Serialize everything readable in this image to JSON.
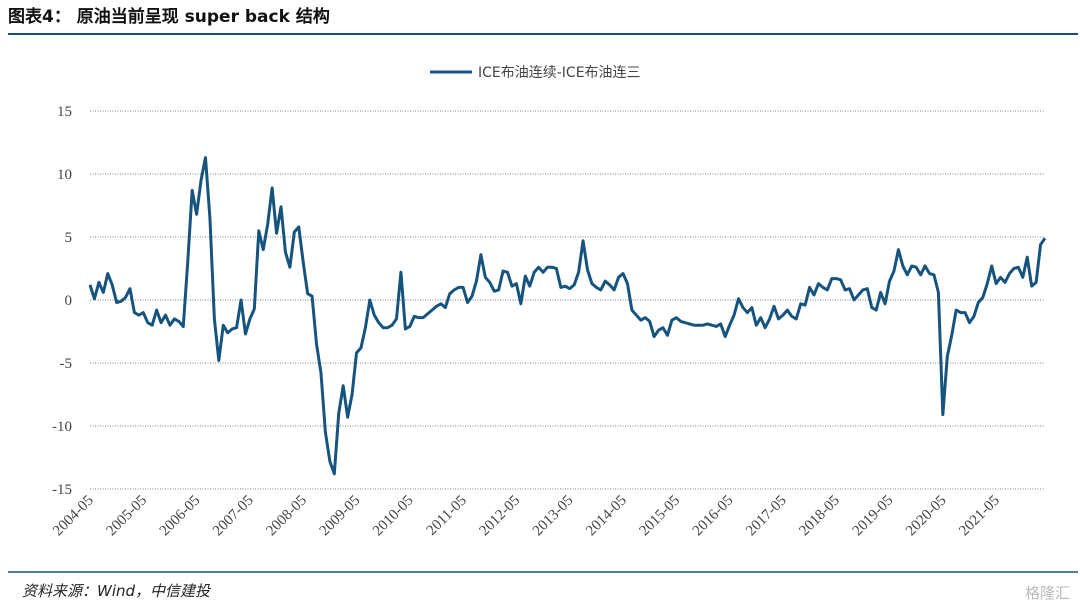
{
  "chart_data": {
    "type": "line",
    "title": "图表4： 原油当前呈现 super back 结构",
    "source": "资料来源：Wind，中信建投",
    "watermark": "格隆汇",
    "categories": [
      "2004-05",
      null,
      null,
      null,
      null,
      null,
      null,
      null,
      null,
      null,
      null,
      null,
      "2005-05",
      null,
      null,
      null,
      null,
      null,
      null,
      null,
      null,
      null,
      null,
      null,
      "2006-05",
      null,
      null,
      null,
      null,
      null,
      null,
      null,
      null,
      null,
      null,
      null,
      "2007-05",
      null,
      null,
      null,
      null,
      null,
      null,
      null,
      null,
      null,
      null,
      null,
      "2008-05",
      null,
      null,
      null,
      null,
      null,
      null,
      null,
      null,
      null,
      null,
      null,
      "2009-05",
      null,
      null,
      null,
      null,
      null,
      null,
      null,
      null,
      null,
      null,
      null,
      "2010-05",
      null,
      null,
      null,
      null,
      null,
      null,
      null,
      null,
      null,
      null,
      null,
      "2011-05",
      null,
      null,
      null,
      null,
      null,
      null,
      null,
      null,
      null,
      null,
      null,
      "2012-05",
      null,
      null,
      null,
      null,
      null,
      null,
      null,
      null,
      null,
      null,
      null,
      "2013-05",
      null,
      null,
      null,
      null,
      null,
      null,
      null,
      null,
      null,
      null,
      null,
      "2014-05",
      null,
      null,
      null,
      null,
      null,
      null,
      null,
      null,
      null,
      null,
      null,
      "2015-05",
      null,
      null,
      null,
      null,
      null,
      null,
      null,
      null,
      null,
      null,
      null,
      "2016-05",
      null,
      null,
      null,
      null,
      null,
      null,
      null,
      null,
      null,
      null,
      null,
      "2017-05",
      null,
      null,
      null,
      null,
      null,
      null,
      null,
      null,
      null,
      null,
      null,
      "2018-05",
      null,
      null,
      null,
      null,
      null,
      null,
      null,
      null,
      null,
      null,
      null,
      "2019-05",
      null,
      null,
      null,
      null,
      null,
      null,
      null,
      null,
      null,
      null,
      null,
      "2020-05",
      null,
      null,
      null,
      null,
      null,
      null,
      null,
      null,
      null,
      null,
      null,
      "2021-05",
      null,
      null,
      null,
      null,
      null,
      null,
      null,
      null,
      null,
      null,
      null
    ],
    "series": [
      {
        "name": "ICE布油连续-ICE布油连三",
        "color": "#16547f",
        "values": [
          1.2,
          0.1,
          1.4,
          0.6,
          2.1,
          1.2,
          -0.2,
          -0.1,
          0.2,
          0.9,
          -1.0,
          -1.2,
          -1.0,
          -1.8,
          -2.0,
          -0.8,
          -1.8,
          -1.2,
          -2.0,
          -1.5,
          -1.7,
          -2.1,
          3.0,
          8.7,
          6.8,
          9.5,
          11.3,
          6.5,
          -1.5,
          -4.8,
          -2.0,
          -2.6,
          -2.3,
          -2.2,
          0.0,
          -2.7,
          -1.5,
          -0.7,
          5.5,
          4.0,
          6.0,
          8.9,
          5.3,
          7.4,
          3.8,
          2.6,
          5.4,
          5.8,
          3.0,
          0.5,
          0.3,
          -3.5,
          -5.8,
          -10.5,
          -12.8,
          -13.8,
          -9.0,
          -6.8,
          -9.3,
          -7.5,
          -4.2,
          -3.8,
          -2.2,
          0.0,
          -1.2,
          -1.8,
          -2.2,
          -2.2,
          -2.0,
          -1.5,
          2.2,
          -2.3,
          -2.1,
          -1.3,
          -1.4,
          -1.4,
          -1.1,
          -0.8,
          -0.5,
          -0.3,
          -0.6,
          0.5,
          0.8,
          1.0,
          1.0,
          -0.2,
          0.3,
          1.5,
          3.6,
          1.8,
          1.4,
          0.7,
          0.8,
          2.3,
          2.2,
          1.1,
          1.3,
          -0.3,
          1.9,
          1.1,
          2.2,
          2.6,
          2.2,
          2.6,
          2.6,
          2.5,
          1.0,
          1.1,
          0.9,
          1.2,
          2.2,
          4.7,
          2.4,
          1.3,
          1.0,
          0.8,
          1.5,
          1.2,
          0.8,
          1.8,
          2.1,
          1.3,
          -0.8,
          -1.2,
          -1.6,
          -1.4,
          -1.7,
          -2.9,
          -2.4,
          -2.2,
          -2.8,
          -1.6,
          -1.4,
          -1.7,
          -1.8,
          -1.9,
          -2.0,
          -2.0,
          -2.0,
          -1.9,
          -2.0,
          -2.1,
          -1.9,
          -2.9,
          -2.0,
          -1.2,
          0.1,
          -0.6,
          -1.0,
          -0.6,
          -2.0,
          -1.4,
          -2.2,
          -1.5,
          -0.5,
          -1.5,
          -1.2,
          -0.8,
          -1.3,
          -1.5,
          -0.3,
          -0.4,
          1.0,
          0.4,
          1.3,
          1.0,
          0.8,
          1.7,
          1.7,
          1.6,
          0.8,
          0.9,
          0.0,
          0.4,
          0.8,
          0.9,
          -0.6,
          -0.8,
          0.6,
          -0.3,
          1.5,
          2.3,
          4.0,
          2.7,
          2.0,
          2.7,
          2.6,
          2.0,
          2.7,
          2.1,
          2.0,
          0.6,
          -9.1,
          -4.5,
          -2.8,
          -0.8,
          -1.0,
          -1.0,
          -1.8,
          -1.3,
          -0.2,
          0.2,
          1.3,
          2.7,
          1.3,
          1.8,
          1.4,
          2.1,
          2.5,
          2.6,
          1.8,
          3.4,
          1.1,
          1.4,
          4.4,
          4.9
        ]
      }
    ],
    "ylim": [
      -15,
      15
    ],
    "yticks": [
      15,
      10,
      5,
      0,
      -5,
      -10,
      -15
    ],
    "grid": true,
    "legend": "top"
  }
}
